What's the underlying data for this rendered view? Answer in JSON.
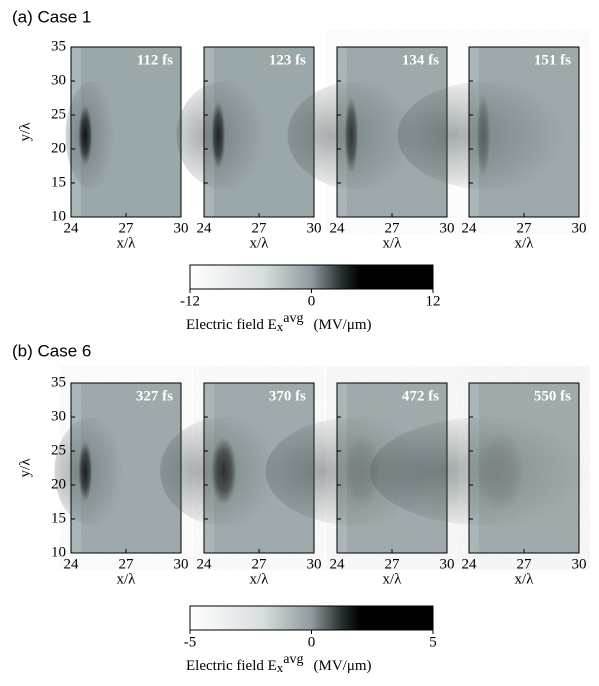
{
  "figures": [
    {
      "title": "(a) Case 1",
      "frames": [
        "112 fs",
        "123 fs",
        "134 fs",
        "151 fs"
      ],
      "xlabel": "x/λ",
      "ylabel": "y/λ",
      "xlim": [
        24,
        30
      ],
      "xticks": [
        24,
        27,
        30
      ],
      "ylim": [
        10,
        35
      ],
      "yticks": [
        10,
        15,
        20,
        25,
        30,
        35
      ],
      "colorbar": {
        "lim": [
          -12,
          12
        ],
        "ticks": [
          -12,
          0,
          12
        ],
        "label": "Electric field E",
        "label_sub": "x",
        "label_sup": "avg",
        "units": "(MV/μm)"
      }
    },
    {
      "title": "(b) Case 6",
      "frames": [
        "327 fs",
        "370 fs",
        "472 fs",
        "550 fs"
      ],
      "xlabel": "x/λ",
      "ylabel": "y/λ",
      "xlim": [
        24,
        30
      ],
      "xticks": [
        24,
        27,
        30
      ],
      "ylim": [
        10,
        35
      ],
      "yticks": [
        10,
        15,
        20,
        25,
        30,
        35
      ],
      "colorbar": {
        "lim": [
          -5,
          5
        ],
        "ticks": [
          -5,
          0,
          5
        ],
        "label": "Electric field E",
        "label_sub": "x",
        "label_sup": "avg",
        "units": "(MV/μm)"
      }
    }
  ]
}
